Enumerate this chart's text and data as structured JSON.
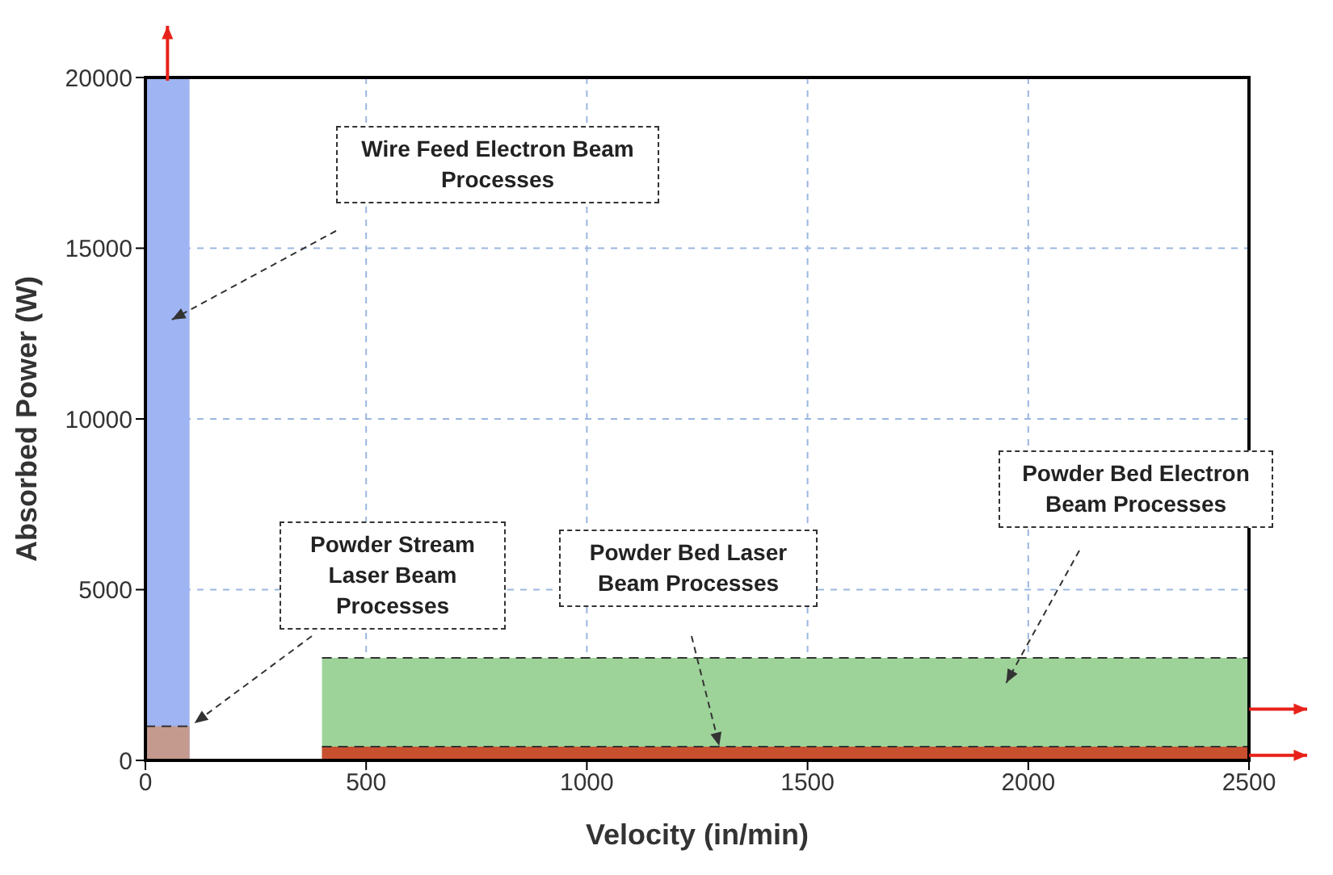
{
  "chart_data": {
    "type": "area",
    "xlabel": "Velocity (in/min)",
    "ylabel": "Absorbed Power (W)",
    "xlim": [
      0,
      2500
    ],
    "xticks": [
      0,
      500,
      1000,
      1500,
      2000,
      2500
    ],
    "ylim": [
      0,
      20000
    ],
    "yticks": [
      0,
      5000,
      10000,
      15000,
      20000
    ],
    "grid": true,
    "legend": false,
    "line_style": "dashed",
    "series": [
      {
        "name": "Wire Feed Electron Beam Processes",
        "color": "#9fb4f2",
        "x": [
          0,
          100
        ],
        "values": [
          20000,
          20000
        ]
      },
      {
        "name": "Powder Stream Laser Beam Processes",
        "color": "#c49a8e",
        "x": [
          0,
          100
        ],
        "values": [
          1000,
          1000
        ]
      },
      {
        "name": "Powder Bed Electron Beam Processes",
        "color": "#9dd398",
        "x": [
          400,
          2500
        ],
        "values": [
          3000,
          3000
        ]
      },
      {
        "name": "Powder Bed Laser Beam Processes",
        "color": "#c8502f",
        "x": [
          400,
          2500
        ],
        "values": [
          400,
          400
        ]
      }
    ]
  }
}
